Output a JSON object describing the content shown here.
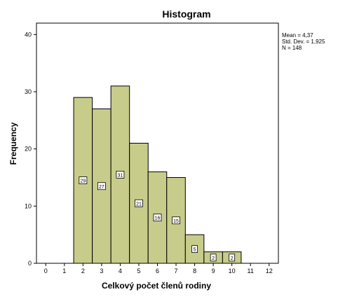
{
  "chart_data": {
    "type": "bar",
    "title": "Histogram",
    "xlabel": "Celkový počet členů rodiny",
    "ylabel": "Frequency",
    "x_ticks": [
      "0",
      "1",
      "2",
      "3",
      "4",
      "5",
      "6",
      "7",
      "8",
      "9",
      "10",
      "11",
      "12"
    ],
    "y_ticks": [
      "0",
      "10",
      "20",
      "30",
      "40"
    ],
    "xlim": [
      -0.5,
      12.5
    ],
    "ylim": [
      0,
      42
    ],
    "bins": [
      {
        "start": 1.5,
        "end": 2.5,
        "value": 29,
        "label": "29"
      },
      {
        "start": 2.5,
        "end": 3.5,
        "value": 27,
        "label": "27"
      },
      {
        "start": 3.5,
        "end": 4.5,
        "value": 31,
        "label": "31"
      },
      {
        "start": 4.5,
        "end": 5.5,
        "value": 21,
        "label": "21"
      },
      {
        "start": 5.5,
        "end": 6.5,
        "value": 16,
        "label": "16"
      },
      {
        "start": 6.5,
        "end": 7.5,
        "value": 15,
        "label": "15"
      },
      {
        "start": 7.5,
        "end": 8.5,
        "value": 5,
        "label": "5"
      },
      {
        "start": 8.5,
        "end": 9.5,
        "value": 2,
        "label": "2"
      },
      {
        "start": 9.5,
        "end": 10.5,
        "value": 2,
        "label": "2"
      }
    ],
    "grid": false,
    "bar_color": "#c8cc8a",
    "bar_edge_color": "#000000"
  },
  "stats": {
    "mean": "Mean = 4,37",
    "std_dev": "Std. Dev. = 1,925",
    "n": "N = 148"
  }
}
